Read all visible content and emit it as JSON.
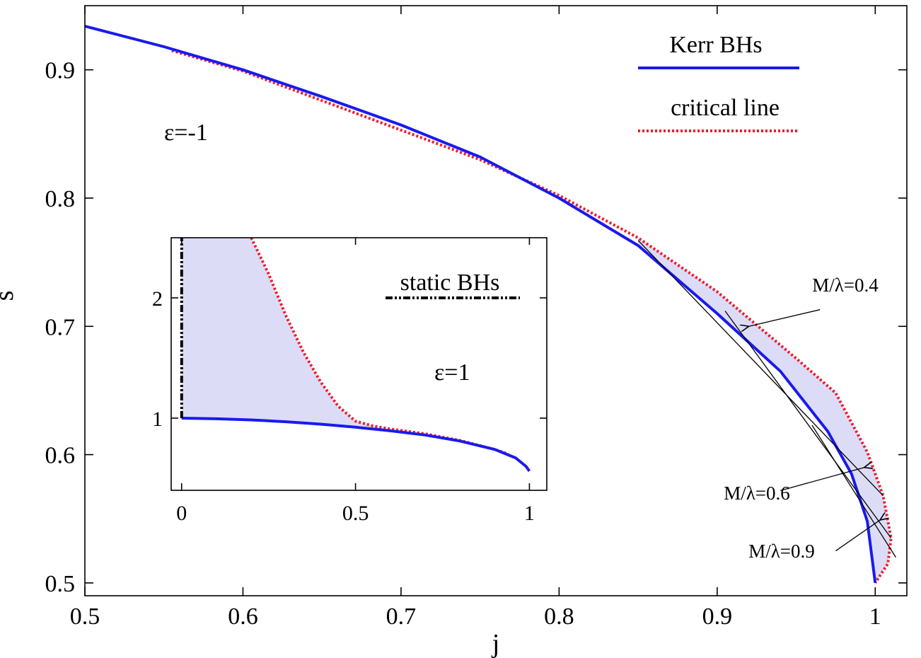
{
  "chart_data": [
    {
      "type": "line",
      "xlabel": "j",
      "ylabel": "s",
      "xlim": [
        0.5,
        1.02
      ],
      "ylim": [
        0.49,
        0.95
      ],
      "x_ticks": [
        "0.5",
        "0.6",
        "0.7",
        "0.8",
        "0.9",
        "1"
      ],
      "y_ticks": [
        "0.5",
        "0.6",
        "0.7",
        "0.8",
        "0.9"
      ],
      "grid": false,
      "legend_position": "top-right",
      "annotation_eps": "ε=-1",
      "series": [
        {
          "name": "Kerr BHs",
          "color": "#1a1aee",
          "style": "solid",
          "points": [
            [
              0.5,
              0.934
            ],
            [
              0.55,
              0.918
            ],
            [
              0.6,
              0.9
            ],
            [
              0.65,
              0.879
            ],
            [
              0.7,
              0.857
            ],
            [
              0.75,
              0.832
            ],
            [
              0.8,
              0.8
            ],
            [
              0.85,
              0.763
            ],
            [
              0.9,
              0.71
            ],
            [
              0.94,
              0.665
            ],
            [
              0.97,
              0.618
            ],
            [
              0.985,
              0.585
            ],
            [
              0.995,
              0.548
            ],
            [
              1.0,
              0.5
            ]
          ]
        },
        {
          "name": "critical line",
          "color": "#ee1c2c",
          "style": "dotted",
          "points": [
            [
              0.555,
              0.915
            ],
            [
              0.6,
              0.899
            ],
            [
              0.65,
              0.876
            ],
            [
              0.7,
              0.853
            ],
            [
              0.75,
              0.83
            ],
            [
              0.8,
              0.802
            ],
            [
              0.85,
              0.769
            ],
            [
              0.9,
              0.727
            ],
            [
              0.95,
              0.675
            ],
            [
              0.975,
              0.648
            ],
            [
              0.995,
              0.602
            ],
            [
              1.005,
              0.568
            ],
            [
              1.01,
              0.535
            ],
            [
              1.008,
              0.515
            ],
            [
              1.0,
              0.5
            ]
          ]
        }
      ],
      "shaded_region": {
        "fill": "#dcdcf7",
        "between": [
          "Kerr BHs",
          "critical line"
        ],
        "x_from": 0.85
      },
      "labelled_lines": [
        {
          "label": "M/λ=0.4",
          "from": [
            0.85,
            0.767
          ],
          "to": [
            1.005,
            0.568
          ],
          "arrow_from": [
            0.965,
            0.713
          ],
          "arrow_to": [
            0.92,
            0.7
          ]
        },
        {
          "label": "M/λ=0.6",
          "from": [
            0.905,
            0.712
          ],
          "to": [
            1.01,
            0.535
          ],
          "arrow_from": [
            0.94,
            0.572
          ],
          "arrow_to": [
            0.993,
            0.59
          ]
        },
        {
          "label": "M/λ=0.9",
          "from": [
            0.96,
            0.623
          ],
          "to": [
            1.013,
            0.52
          ],
          "arrow_from": [
            0.975,
            0.525
          ],
          "arrow_to": [
            1.003,
            0.549
          ]
        }
      ]
    },
    {
      "type": "line",
      "inset": true,
      "xlim": [
        -0.03,
        1.05
      ],
      "ylim": [
        0.4,
        2.5
      ],
      "x_ticks": [
        "0",
        "0.5",
        "1"
      ],
      "y_ticks": [
        "1",
        "2"
      ],
      "annotation_eps": "ε=1",
      "legend_entry": "static BHs",
      "series": [
        {
          "name": "Kerr BHs",
          "color": "#1a1aee",
          "style": "solid",
          "points": [
            [
              0,
              1.0
            ],
            [
              0.1,
              0.995
            ],
            [
              0.2,
              0.985
            ],
            [
              0.3,
              0.97
            ],
            [
              0.4,
              0.95
            ],
            [
              0.5,
              0.925
            ],
            [
              0.6,
              0.895
            ],
            [
              0.7,
              0.86
            ],
            [
              0.8,
              0.81
            ],
            [
              0.9,
              0.74
            ],
            [
              0.96,
              0.67
            ],
            [
              0.99,
              0.6
            ],
            [
              1.0,
              0.56
            ]
          ]
        },
        {
          "name": "critical line",
          "color": "#ee1c2c",
          "style": "dotted",
          "points": [
            [
              0.2,
              2.5
            ],
            [
              0.25,
              2.2
            ],
            [
              0.3,
              1.85
            ],
            [
              0.35,
              1.55
            ],
            [
              0.4,
              1.3
            ],
            [
              0.45,
              1.1
            ],
            [
              0.5,
              0.975
            ],
            [
              0.55,
              0.935
            ],
            [
              0.6,
              0.91
            ],
            [
              0.7,
              0.87
            ],
            [
              0.8,
              0.815
            ],
            [
              0.9,
              0.74
            ],
            [
              0.94,
              0.7
            ]
          ]
        },
        {
          "name": "static BHs",
          "color": "#000000",
          "style": "dash-dot",
          "points": [
            [
              0,
              1.0
            ],
            [
              0,
              2.5
            ]
          ]
        }
      ],
      "shaded_region": {
        "fill": "#dcdcf7",
        "between": [
          "Kerr BHs",
          "critical line"
        ],
        "x_from": 0
      }
    }
  ]
}
